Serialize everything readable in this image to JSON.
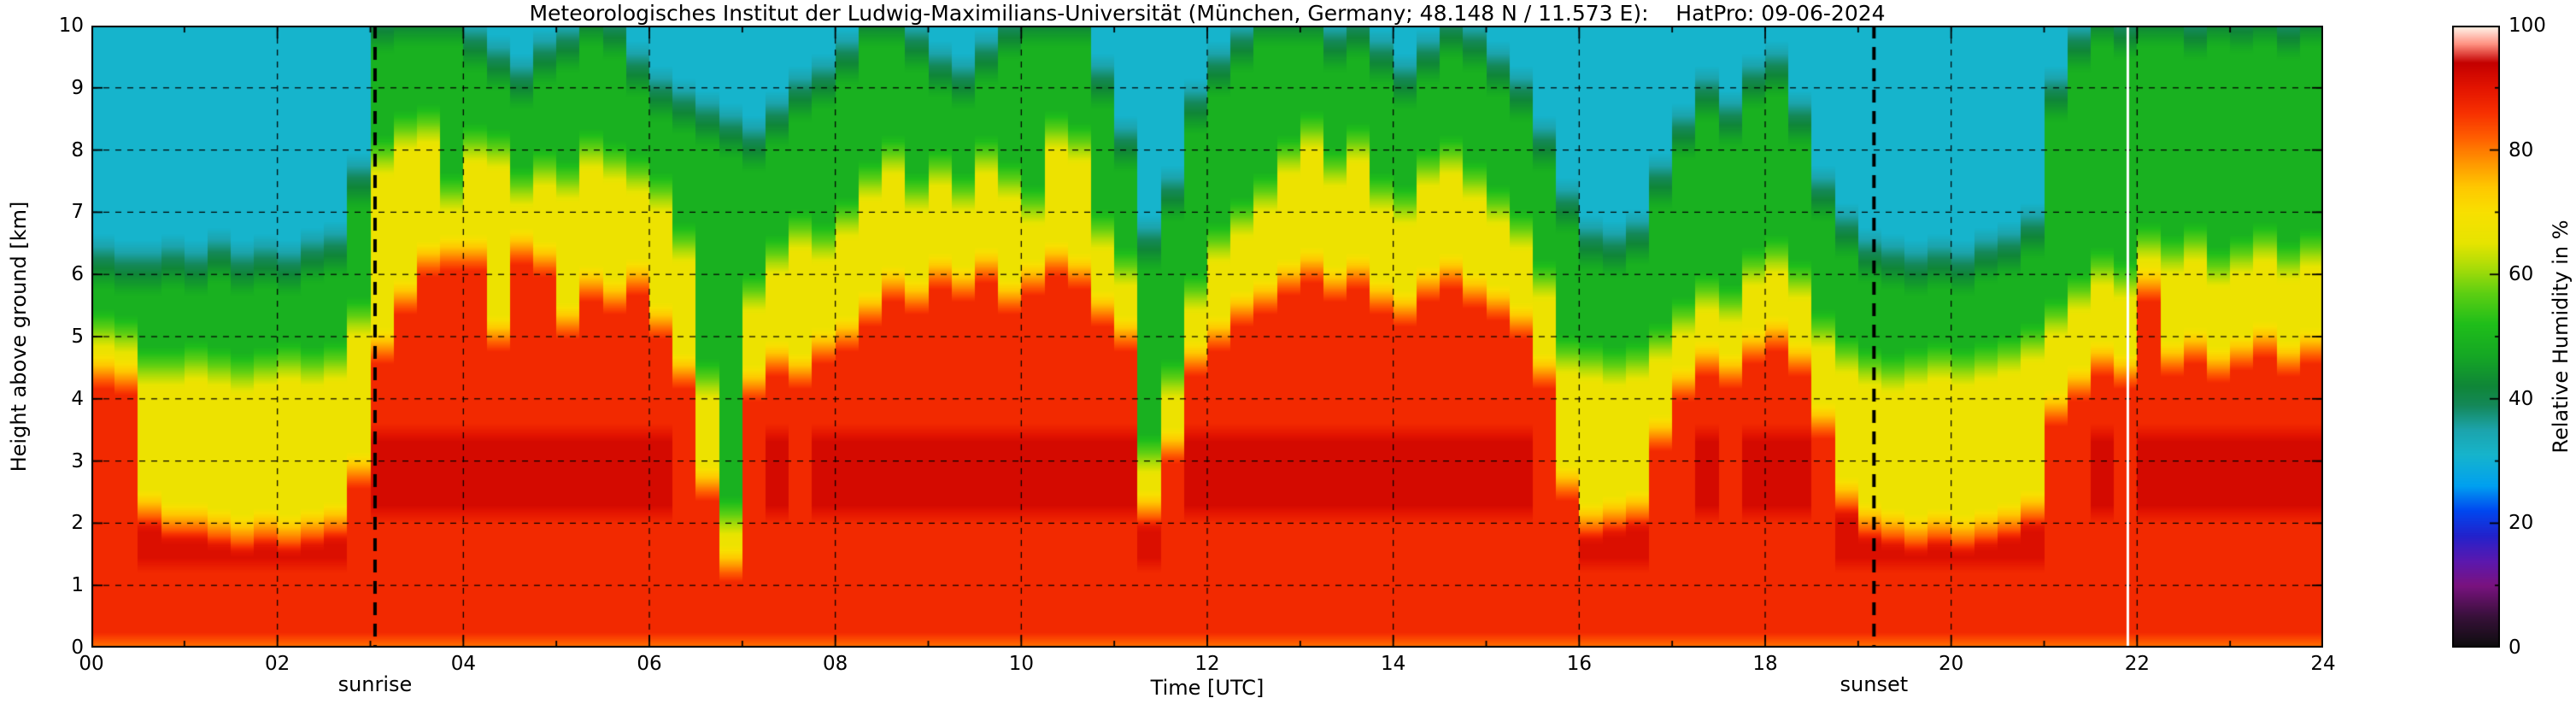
{
  "figure": {
    "background": "#ffffff"
  },
  "chart_data": {
    "type": "heatmap",
    "title": "Meteorologisches Institut der Ludwig-Maximilians-Universität (München, Germany; 48.148 N / 11.573 E):    HatPro: 09-06-2024",
    "xlabel": "Time [UTC]",
    "ylabel": "Height above ground [km]",
    "xlim": [
      0,
      24
    ],
    "ylim": [
      0,
      10
    ],
    "xtick_values": [
      0,
      2,
      4,
      6,
      8,
      10,
      12,
      14,
      16,
      18,
      20,
      22,
      24
    ],
    "xtick_labels": [
      "00",
      "02",
      "04",
      "06",
      "08",
      "10",
      "12",
      "14",
      "16",
      "18",
      "20",
      "22",
      "24"
    ],
    "ytick_values": [
      0,
      1,
      2,
      3,
      4,
      5,
      6,
      7,
      8,
      9,
      10
    ],
    "ytick_labels": [
      "0",
      "1",
      "2",
      "3",
      "4",
      "5",
      "6",
      "7",
      "8",
      "9",
      "10"
    ],
    "grid": {
      "x_every": 2,
      "y_every": 1,
      "style": "dashed",
      "color": "#000000"
    },
    "colorbar": {
      "label": "Relative Humidity in %",
      "tick_values": [
        0,
        20,
        40,
        60,
        80,
        100
      ],
      "tick_labels": [
        "0",
        "20",
        "40",
        "60",
        "80",
        "100"
      ],
      "minor_tick_values": [
        10,
        30,
        50,
        70,
        90
      ],
      "vmin": 0,
      "vmax": 100
    },
    "colormap": [
      [
        0,
        "#0d0d0d"
      ],
      [
        5,
        "#38103a"
      ],
      [
        10,
        "#7a1280"
      ],
      [
        14,
        "#5a18b0"
      ],
      [
        18,
        "#2222cc"
      ],
      [
        22,
        "#0048f0"
      ],
      [
        26,
        "#00a0f0"
      ],
      [
        31,
        "#16b4cc"
      ],
      [
        35,
        "#1ca4ac"
      ],
      [
        39,
        "#148858"
      ],
      [
        42,
        "#0f8638"
      ],
      [
        47,
        "#15a824"
      ],
      [
        52,
        "#1fbe1a"
      ],
      [
        57,
        "#5ecf12"
      ],
      [
        61,
        "#a8dc08"
      ],
      [
        65,
        "#e6e400"
      ],
      [
        70,
        "#f8e000"
      ],
      [
        74,
        "#ffc800"
      ],
      [
        78,
        "#ff9600"
      ],
      [
        82,
        "#ff5e00"
      ],
      [
        86,
        "#f73000"
      ],
      [
        90,
        "#e31400"
      ],
      [
        94,
        "#c40000"
      ],
      [
        97,
        "#ff9080"
      ],
      [
        99,
        "#ffd8cc"
      ],
      [
        100,
        "#fffcf0"
      ]
    ],
    "annotations": [
      {
        "type": "vline",
        "label": "sunrise",
        "x": 3.05
      },
      {
        "type": "vline",
        "label": "sunset",
        "x": 19.17
      }
    ],
    "data_gaps": [
      21.9
    ],
    "band_values": {
      "surface": 80,
      "red": 87,
      "dark_red": 92,
      "yellow": 67,
      "green": 49,
      "teal": 31
    },
    "profiles": {
      "t_start": 0,
      "t_step_hours": 0.25,
      "column_format": [
        "red_top_km",
        "yellow_top_km",
        "green_top_km"
      ],
      "columns": [
        [
          4.4,
          5.0,
          6.1
        ],
        [
          4.3,
          4.9,
          6.0
        ],
        [
          2.2,
          4.4,
          6.0
        ],
        [
          2.0,
          4.4,
          6.1
        ],
        [
          2.0,
          4.5,
          6.0
        ],
        [
          1.9,
          4.4,
          6.2
        ],
        [
          1.8,
          4.3,
          6.0
        ],
        [
          1.9,
          4.4,
          6.1
        ],
        [
          1.8,
          4.5,
          6.0
        ],
        [
          1.9,
          4.4,
          6.2
        ],
        [
          2.0,
          4.5,
          6.3
        ],
        [
          2.8,
          5.2,
          7.4
        ],
        [
          4.8,
          7.8,
          9.9
        ],
        [
          5.6,
          8.2,
          10
        ],
        [
          6.2,
          8.3,
          10
        ],
        [
          6.3,
          7.2,
          10
        ],
        [
          6.3,
          8.0,
          9.6
        ],
        [
          5.0,
          7.9,
          9.3
        ],
        [
          6.4,
          7.3,
          9.0
        ],
        [
          6.2,
          7.6,
          9.4
        ],
        [
          5.2,
          7.4,
          9.6
        ],
        [
          5.8,
          7.9,
          10
        ],
        [
          5.6,
          7.7,
          9.8
        ],
        [
          5.9,
          7.5,
          9.2
        ],
        [
          5.2,
          7.2,
          8.8
        ],
        [
          4.4,
          6.4,
          8.6
        ],
        [
          2.6,
          4.2,
          8.4
        ],
        [
          1.3,
          2.0,
          8.2
        ],
        [
          4.2,
          5.6,
          8.0
        ],
        [
          4.6,
          6.2,
          8.4
        ],
        [
          4.4,
          6.6,
          8.8
        ],
        [
          4.8,
          6.4,
          9.0
        ],
        [
          5.0,
          6.8,
          9.4
        ],
        [
          5.4,
          7.4,
          10
        ],
        [
          5.8,
          7.8,
          10
        ],
        [
          5.6,
          7.2,
          9.6
        ],
        [
          6.0,
          7.6,
          9.2
        ],
        [
          5.8,
          7.2,
          9.0
        ],
        [
          6.1,
          7.8,
          9.4
        ],
        [
          5.6,
          7.4,
          9.8
        ],
        [
          5.9,
          7.0,
          10
        ],
        [
          6.2,
          8.2,
          10
        ],
        [
          6.0,
          8.0,
          10
        ],
        [
          5.4,
          6.6,
          9.0
        ],
        [
          5.0,
          6.0,
          8.0
        ],
        [
          2.2,
          3.0,
          6.4
        ],
        [
          3.2,
          4.2,
          7.2
        ],
        [
          4.6,
          5.6,
          8.6
        ],
        [
          5.0,
          6.4,
          9.2
        ],
        [
          5.4,
          6.8,
          9.6
        ],
        [
          5.6,
          7.2,
          10
        ],
        [
          5.9,
          7.8,
          10
        ],
        [
          6.1,
          8.2,
          10
        ],
        [
          5.8,
          7.6,
          9.6
        ],
        [
          6.0,
          8.0,
          9.8
        ],
        [
          5.6,
          7.2,
          9.4
        ],
        [
          5.4,
          7.0,
          9.0
        ],
        [
          5.8,
          7.6,
          9.4
        ],
        [
          6.0,
          7.8,
          9.8
        ],
        [
          5.7,
          7.4,
          9.6
        ],
        [
          5.5,
          7.0,
          9.2
        ],
        [
          5.2,
          6.6,
          8.8
        ],
        [
          4.4,
          5.8,
          8.0
        ],
        [
          2.6,
          4.6,
          7.0
        ],
        [
          2.0,
          4.5,
          6.4
        ],
        [
          2.1,
          4.4,
          6.3
        ],
        [
          2.2,
          4.5,
          6.5
        ],
        [
          3.4,
          4.8,
          7.4
        ],
        [
          4.2,
          5.2,
          8.2
        ],
        [
          4.6,
          5.6,
          8.8
        ],
        [
          4.4,
          5.4,
          8.4
        ],
        [
          4.8,
          6.0,
          9.0
        ],
        [
          5.0,
          6.2,
          9.2
        ],
        [
          4.6,
          5.8,
          8.4
        ],
        [
          3.6,
          5.0,
          7.2
        ],
        [
          2.4,
          4.6,
          6.6
        ],
        [
          2.0,
          4.4,
          6.2
        ],
        [
          1.9,
          4.3,
          6.1
        ],
        [
          1.8,
          4.4,
          6.0
        ],
        [
          1.9,
          4.5,
          6.1
        ],
        [
          1.8,
          4.4,
          6.0
        ],
        [
          1.9,
          4.5,
          6.2
        ],
        [
          2.0,
          4.6,
          6.3
        ],
        [
          2.2,
          4.8,
          6.6
        ],
        [
          3.8,
          5.2,
          8.8
        ],
        [
          4.2,
          5.6,
          9.6
        ],
        [
          4.6,
          6.0,
          10
        ],
        [
          4.4,
          5.8,
          9.8
        ],
        [
          5.8,
          6.4,
          10
        ],
        [
          4.6,
          6.2,
          10
        ],
        [
          4.8,
          6.4,
          9.8
        ],
        [
          4.5,
          6.0,
          10
        ],
        [
          4.7,
          6.2,
          9.9
        ],
        [
          4.9,
          6.4,
          10
        ],
        [
          4.6,
          6.1,
          9.8
        ],
        [
          4.8,
          6.3,
          10
        ]
      ]
    }
  }
}
